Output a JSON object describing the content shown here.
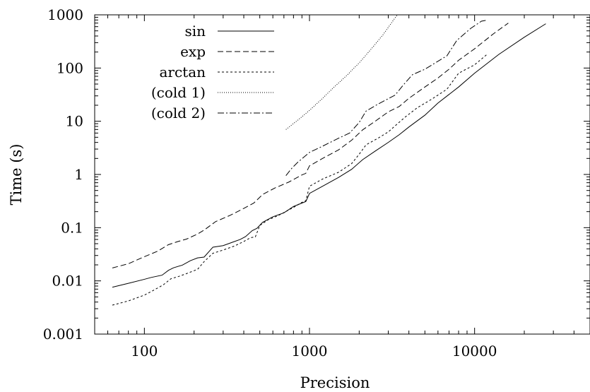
{
  "chart_data": {
    "type": "line",
    "xlabel": "Precision",
    "ylabel": "Time (s)",
    "xscale": "log",
    "yscale": "log",
    "xlim": [
      50,
      50000
    ],
    "ylim": [
      0.001,
      1000
    ],
    "x_ticks": [
      {
        "value": 100,
        "label": "100"
      },
      {
        "value": 1000,
        "label": "1000"
      },
      {
        "value": 10000,
        "label": "10000"
      }
    ],
    "y_ticks": [
      {
        "value": 0.001,
        "label": "0.001"
      },
      {
        "value": 0.01,
        "label": "0.01"
      },
      {
        "value": 0.1,
        "label": "0.1"
      },
      {
        "value": 1,
        "label": "1"
      },
      {
        "value": 10,
        "label": "10"
      },
      {
        "value": 100,
        "label": "100"
      },
      {
        "value": 1000,
        "label": "1000"
      }
    ],
    "grid": false,
    "legend_position": "top-left",
    "series": [
      {
        "name": "sin",
        "dash": "",
        "points": [
          [
            64,
            0.0076
          ],
          [
            80,
            0.009
          ],
          [
            100,
            0.0107
          ],
          [
            110,
            0.0116
          ],
          [
            128,
            0.0128
          ],
          [
            140,
            0.0158
          ],
          [
            150,
            0.0176
          ],
          [
            170,
            0.0198
          ],
          [
            190,
            0.024
          ],
          [
            210,
            0.027
          ],
          [
            230,
            0.028
          ],
          [
            260,
            0.043
          ],
          [
            300,
            0.046
          ],
          [
            340,
            0.053
          ],
          [
            380,
            0.06
          ],
          [
            410,
            0.068
          ],
          [
            450,
            0.088
          ],
          [
            480,
            0.097
          ],
          [
            520,
            0.126
          ],
          [
            600,
            0.16
          ],
          [
            700,
            0.19
          ],
          [
            800,
            0.25
          ],
          [
            900,
            0.29
          ],
          [
            950,
            0.31
          ],
          [
            1000,
            0.44
          ],
          [
            1200,
            0.6
          ],
          [
            1500,
            0.88
          ],
          [
            1800,
            1.25
          ],
          [
            2100,
            1.9
          ],
          [
            2500,
            2.75
          ],
          [
            3000,
            4.0
          ],
          [
            3500,
            5.6
          ],
          [
            4000,
            7.8
          ],
          [
            5000,
            13
          ],
          [
            6000,
            22
          ],
          [
            8000,
            44
          ],
          [
            10000,
            80
          ],
          [
            14000,
            180
          ],
          [
            20000,
            380
          ],
          [
            27000,
            680
          ]
        ]
      },
      {
        "name": "exp",
        "dash": "8,4",
        "points": [
          [
            64,
            0.0175
          ],
          [
            80,
            0.021
          ],
          [
            100,
            0.0285
          ],
          [
            120,
            0.036
          ],
          [
            140,
            0.048
          ],
          [
            160,
            0.055
          ],
          [
            180,
            0.061
          ],
          [
            210,
            0.076
          ],
          [
            230,
            0.09
          ],
          [
            270,
            0.13
          ],
          [
            330,
            0.17
          ],
          [
            400,
            0.23
          ],
          [
            460,
            0.29
          ],
          [
            520,
            0.42
          ],
          [
            620,
            0.56
          ],
          [
            750,
            0.72
          ],
          [
            900,
            0.98
          ],
          [
            950,
            1.05
          ],
          [
            1000,
            1.45
          ],
          [
            1200,
            2.0
          ],
          [
            1500,
            2.9
          ],
          [
            1800,
            4.4
          ],
          [
            2100,
            6.9
          ],
          [
            2500,
            10
          ],
          [
            3000,
            15
          ],
          [
            3500,
            19
          ],
          [
            4000,
            27
          ],
          [
            5000,
            44
          ],
          [
            6000,
            65
          ],
          [
            7000,
            95
          ],
          [
            8000,
            140
          ],
          [
            10000,
            230
          ],
          [
            13000,
            440
          ],
          [
            16000,
            700
          ]
        ]
      },
      {
        "name": "arctan",
        "dash": "3,3",
        "points": [
          [
            64,
            0.0035
          ],
          [
            80,
            0.0042
          ],
          [
            100,
            0.0054
          ],
          [
            110,
            0.0063
          ],
          [
            130,
            0.0084
          ],
          [
            145,
            0.011
          ],
          [
            160,
            0.012
          ],
          [
            180,
            0.0137
          ],
          [
            210,
            0.0165
          ],
          [
            230,
            0.023
          ],
          [
            260,
            0.033
          ],
          [
            300,
            0.038
          ],
          [
            350,
            0.045
          ],
          [
            400,
            0.055
          ],
          [
            440,
            0.065
          ],
          [
            470,
            0.067
          ],
          [
            500,
            0.11
          ],
          [
            560,
            0.14
          ],
          [
            650,
            0.17
          ],
          [
            800,
            0.24
          ],
          [
            900,
            0.3
          ],
          [
            950,
            0.32
          ],
          [
            1000,
            0.6
          ],
          [
            1200,
            0.82
          ],
          [
            1500,
            1.1
          ],
          [
            1800,
            1.6
          ],
          [
            2000,
            2.4
          ],
          [
            2200,
            3.6
          ],
          [
            2600,
            4.8
          ],
          [
            3000,
            6.3
          ],
          [
            3300,
            8.2
          ],
          [
            3800,
            12
          ],
          [
            4500,
            18
          ],
          [
            5500,
            26
          ],
          [
            6800,
            40
          ],
          [
            8000,
            80
          ],
          [
            10000,
            115
          ],
          [
            12000,
            185
          ]
        ]
      },
      {
        "name": "(cold 1)",
        "dash": "1,2",
        "points": [
          [
            720,
            7.0
          ],
          [
            850,
            10.5
          ],
          [
            1000,
            16
          ],
          [
            1200,
            27
          ],
          [
            1400,
            43
          ],
          [
            1700,
            75
          ],
          [
            2000,
            125
          ],
          [
            2400,
            240
          ],
          [
            2800,
            430
          ],
          [
            3300,
            880
          ],
          [
            3450,
            1050
          ]
        ]
      },
      {
        "name": "(cold 2)",
        "dash": "9,3,2,3",
        "points": [
          [
            720,
            0.95
          ],
          [
            780,
            1.3
          ],
          [
            850,
            1.7
          ],
          [
            1000,
            2.6
          ],
          [
            1200,
            3.4
          ],
          [
            1500,
            4.8
          ],
          [
            1750,
            6.0
          ],
          [
            2000,
            9.5
          ],
          [
            2200,
            15.5
          ],
          [
            2600,
            21
          ],
          [
            3300,
            31
          ],
          [
            3700,
            48
          ],
          [
            4200,
            75
          ],
          [
            5000,
            95
          ],
          [
            6800,
            170
          ],
          [
            7800,
            330
          ],
          [
            9500,
            560
          ],
          [
            11000,
            760
          ],
          [
            12000,
            800
          ]
        ]
      }
    ]
  }
}
